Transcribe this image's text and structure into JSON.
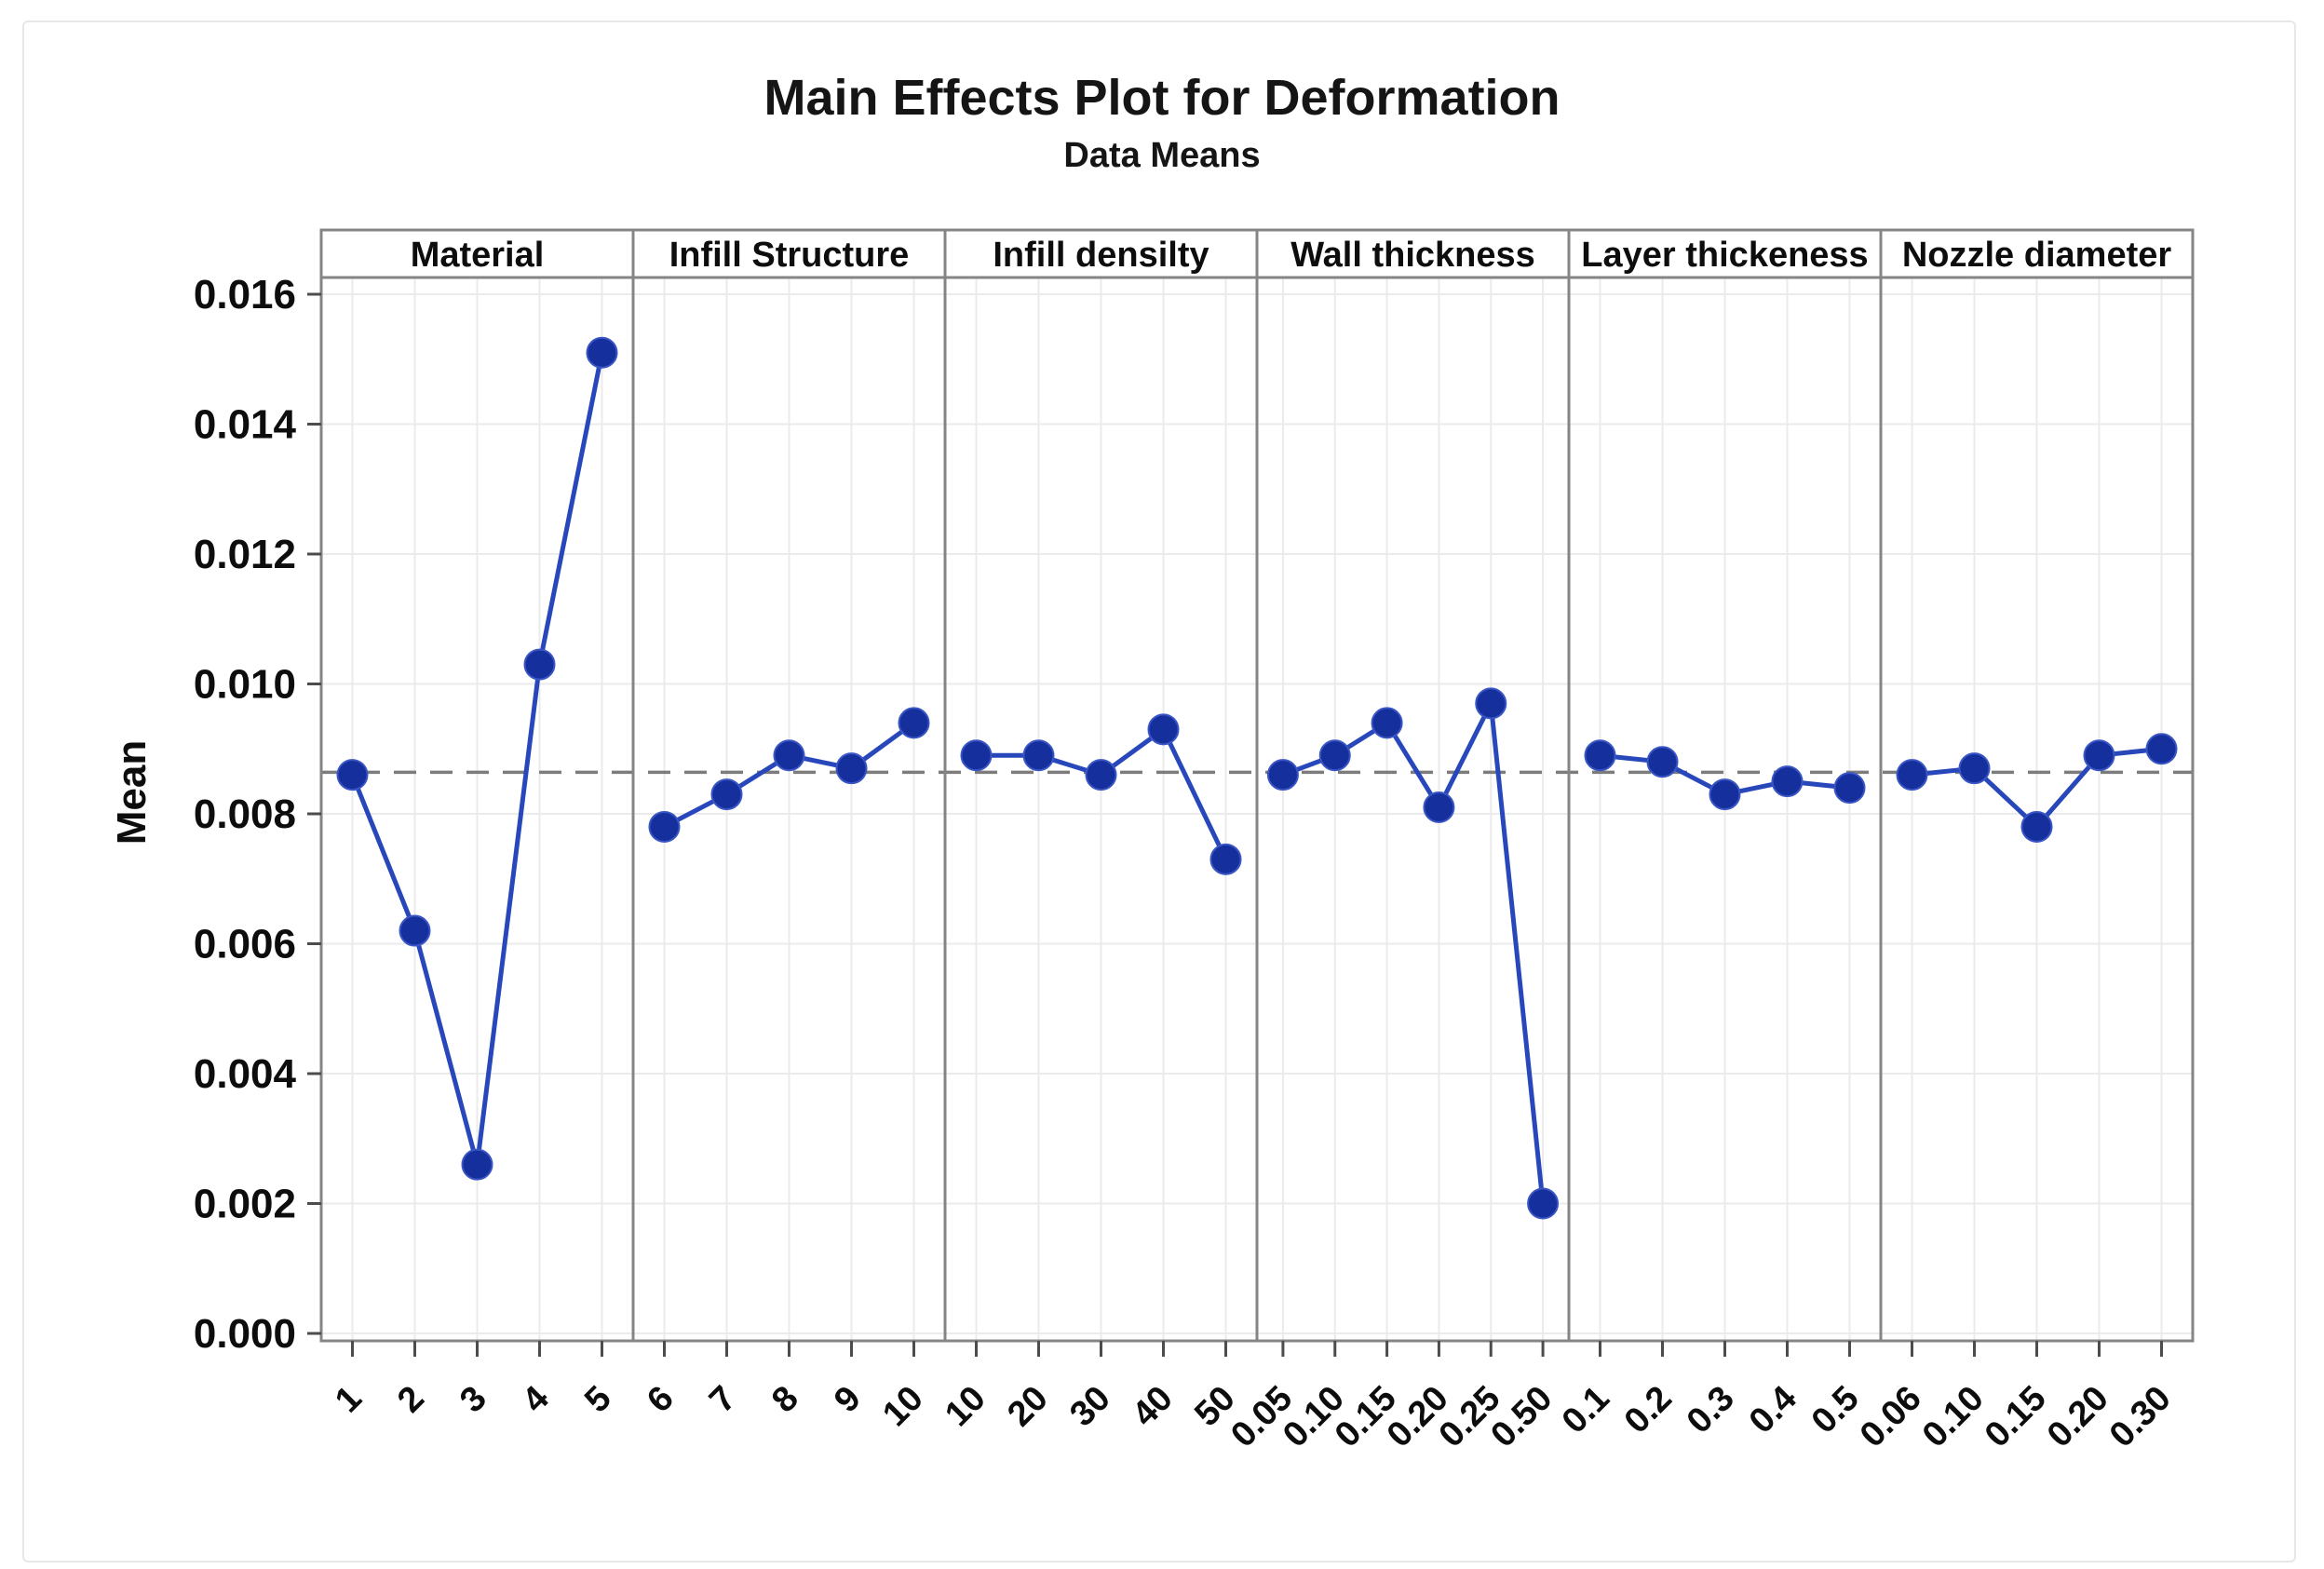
{
  "header": {
    "title": "Main Effects Plot for Deformation",
    "subtitle": "Data Means"
  },
  "chart_data": {
    "type": "line",
    "title": "Main Effects Plot for Deformation",
    "subtitle": "Data Means",
    "ylabel": "Mean",
    "ylim": [
      0.0,
      0.016
    ],
    "ytick_step": 0.002,
    "yticks": [
      "0.016",
      "0.014",
      "0.012",
      "0.010",
      "0.008",
      "0.006",
      "0.004",
      "0.002",
      "0.000"
    ],
    "grid": true,
    "legend": "none",
    "reference_line_mean": 0.00864,
    "panels": [
      {
        "label": "Material",
        "categories": [
          "1",
          "2",
          "3",
          "4",
          "5"
        ],
        "values": [
          0.0086,
          0.0062,
          0.0026,
          0.0103,
          0.0151
        ]
      },
      {
        "label": "Infill Structure",
        "categories": [
          "6",
          "7",
          "8",
          "9",
          "10"
        ],
        "values": [
          0.0078,
          0.0083,
          0.0089,
          0.0087,
          0.0094
        ]
      },
      {
        "label": "Infill densilty",
        "categories": [
          "10",
          "20",
          "30",
          "40",
          "50"
        ],
        "values": [
          0.0089,
          0.0089,
          0.0086,
          0.0093,
          0.0073
        ]
      },
      {
        "label": "Wall thickness",
        "categories": [
          "0.05",
          "0.10",
          "0.15",
          "0.20",
          "0.25",
          "0.50"
        ],
        "values": [
          0.0086,
          0.0089,
          0.0094,
          0.0081,
          0.0097,
          0.002
        ]
      },
      {
        "label": "Layer thickeness",
        "categories": [
          "0.1",
          "0.2",
          "0.3",
          "0.4",
          "0.5"
        ],
        "values": [
          0.0089,
          0.0088,
          0.0083,
          0.0085,
          0.0084
        ]
      },
      {
        "label": "Nozzle diameter",
        "categories": [
          "0.06",
          "0.10",
          "0.15",
          "0.20",
          "0.30"
        ],
        "values": [
          0.0086,
          0.0087,
          0.0078,
          0.0089,
          0.009
        ]
      }
    ],
    "colors": {
      "marker": "#15309c",
      "line": "#2747ba",
      "reference_line": "#7c7c7c",
      "gridline": "#ebebeb",
      "panel_border": "#858585",
      "tick": "#4c4c4c",
      "text": "#0d0d0d"
    }
  }
}
